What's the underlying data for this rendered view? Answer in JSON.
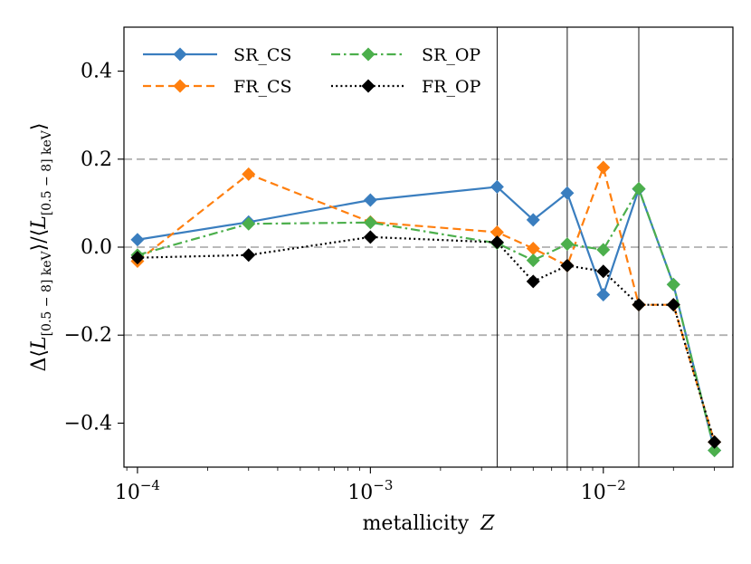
{
  "chart_data": {
    "type": "line",
    "title": "",
    "xlabel_text": "metallicity",
    "xlabel_var": "Z",
    "ylabel": "Δ⟨L[0.5−8] keV⟩/⟨L[0.5−8] keV⟩",
    "xscale": "log",
    "xlim": [
      8.75e-05,
      0.036
    ],
    "ylim": [
      -0.5,
      0.5
    ],
    "x": [
      0.0001,
      0.0003,
      0.001,
      0.0035,
      0.005,
      0.007,
      0.01,
      0.0142,
      0.02,
      0.03
    ],
    "x_ticks": [
      {
        "value": 0.0001,
        "base": "10",
        "exp": "−4"
      },
      {
        "value": 0.001,
        "base": "10",
        "exp": "−3"
      },
      {
        "value": 0.01,
        "base": "10",
        "exp": "−2"
      }
    ],
    "y_ticks": [
      {
        "value": 0.4,
        "label": "0.4"
      },
      {
        "value": 0.2,
        "label": "0.2"
      },
      {
        "value": 0.0,
        "label": "0.0"
      },
      {
        "value": -0.2,
        "label": "−0.2"
      },
      {
        "value": -0.4,
        "label": "−0.4"
      }
    ],
    "hlines_dashed": [
      0.2,
      0.0,
      -0.2
    ],
    "vlines": [
      0.0035,
      0.007,
      0.0142
    ],
    "series": [
      {
        "name": "SR_CS",
        "color": "#3a7ebf",
        "dash": "solid",
        "values": [
          0.017,
          0.057,
          0.107,
          0.137,
          0.062,
          0.123,
          -0.108,
          0.132,
          -0.085,
          -0.462
        ]
      },
      {
        "name": "FR_CS",
        "color": "#ff7f0e",
        "dash": "dashed",
        "values": [
          -0.032,
          0.166,
          0.057,
          0.034,
          -0.003,
          -0.042,
          0.181,
          -0.131,
          -0.131,
          -0.443
        ]
      },
      {
        "name": "SR_OP",
        "color": "#4caf4c",
        "dash": "dashdot",
        "values": [
          -0.018,
          0.053,
          0.056,
          0.009,
          -0.03,
          0.007,
          -0.006,
          0.133,
          -0.085,
          -0.462
        ]
      },
      {
        "name": "FR_OP",
        "color": "#000000",
        "dash": "dotted",
        "values": [
          -0.024,
          -0.018,
          0.023,
          0.011,
          -0.078,
          -0.042,
          -0.055,
          -0.131,
          -0.131,
          -0.443
        ]
      }
    ],
    "legend": {
      "location": "upper-left",
      "columns": 2,
      "order": [
        "SR_CS",
        "FR_CS",
        "SR_OP",
        "FR_OP"
      ]
    }
  }
}
